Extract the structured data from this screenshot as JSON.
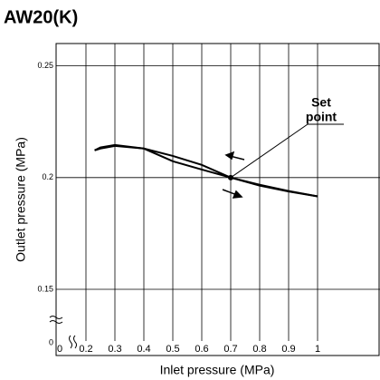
{
  "chart_data": {
    "type": "line",
    "title": "AW20(K)",
    "x_label": "Inlet pressure (MPa)",
    "y_label": "Outlet pressure (MPa)",
    "xlim": [
      0,
      1.2
    ],
    "xticks": [
      0,
      0.2,
      0.3,
      0.4,
      0.5,
      0.6,
      0.7,
      0.8,
      0.9,
      1
    ],
    "ylim": [
      0,
      0.26
    ],
    "yticks": [
      0,
      0.15,
      0.2,
      0.25
    ],
    "x_axis_break": true,
    "y_axis_break": true,
    "grid": true,
    "series": [
      {
        "color": "#000000",
        "x": [
          0.23,
          0.25,
          0.3,
          0.4,
          0.5,
          0.6,
          0.7,
          0.8,
          0.9,
          1.0
        ],
        "values": [
          0.2122,
          0.2135,
          0.2146,
          0.213,
          0.2097,
          0.2057,
          0.2,
          0.1968,
          0.194,
          0.1916
        ]
      },
      {
        "color": "#000000",
        "x": [
          0.23,
          0.25,
          0.3,
          0.4,
          0.5,
          0.6,
          0.7,
          0.8,
          0.9,
          1.0
        ],
        "values": [
          0.2122,
          0.213,
          0.2142,
          0.213,
          0.2073,
          0.2036,
          0.2,
          0.1964,
          0.1938,
          0.1916
        ]
      }
    ],
    "set_point": {
      "x": 0.7,
      "y": 0.2,
      "label": [
        "Set",
        "point"
      ]
    }
  }
}
